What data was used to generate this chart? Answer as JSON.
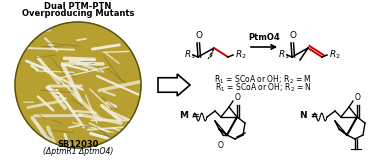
{
  "background_color": "#ffffff",
  "left_panel": {
    "title_line1": "Dual PTM-PTN",
    "title_line2": "Overproducing Mutants",
    "strain_line1": "SB12030",
    "strain_line2": "(ΔptmR1 ΔptmO4)",
    "circle_color": "#b8a030",
    "circle_edge": "#6a6010"
  },
  "reaction_label": "PtmO4",
  "r1_label": "R$_1$ = SCoA or OH; R$_2$ = M",
  "r2_label": "R$_1$ = SCoA or OH; R$_2$ = N",
  "red_bond_color": "#cc0000",
  "text_color": "#000000",
  "fig_width": 3.78,
  "fig_height": 1.65,
  "dpi": 100
}
